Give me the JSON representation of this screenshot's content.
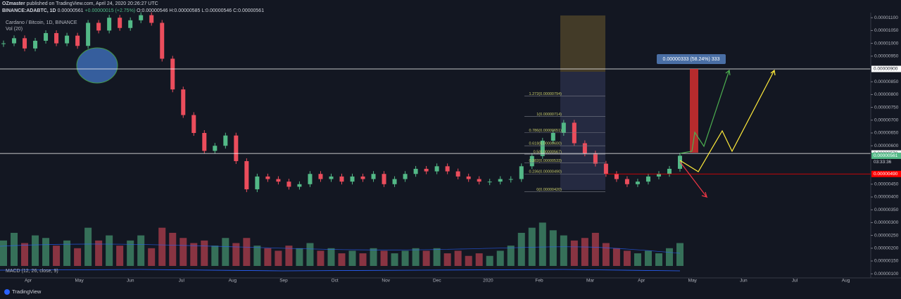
{
  "header": {
    "author": "OZmaster",
    "published": "published on TradingView.com, April 24, 2020 20:26:27 UTC",
    "symbol": "BINANCE:ADABTC, 1D",
    "last": "0.00000561",
    "change": "+0.00000015 (+2.75%)",
    "ohlc": "O:0.00000546 H:0.00000585 L:0.00000546 C:0.00000561"
  },
  "chart_data": {
    "type": "candlestick",
    "title": "Cardano / Bitcoin, 1D, BINANCE",
    "volume_title": "Vol (20)",
    "indicator_title": "MACD (12, 26, close, 9)",
    "closes": [
      1e-05,
      1.02e-05,
      9.8e-06,
      1.01e-05,
      1.04e-05,
      1e-05,
      1.03e-05,
      9.9e-06,
      1.08e-05,
      1.05e-05,
      1.1e-05,
      1.06e-05,
      1.09e-05,
      1.11e-05,
      1.08e-05,
      9.4e-06,
      8.2e-06,
      7.2e-06,
      6.5e-06,
      5.8e-06,
      6e-06,
      6.4e-06,
      5.4e-06,
      4.3e-06,
      4.8e-06,
      4.7e-06,
      4.6e-06,
      4.4e-06,
      4.5e-06,
      4.9e-06,
      4.7e-06,
      4.8e-06,
      4.6e-06,
      4.8e-06,
      4.7e-06,
      4.9e-06,
      4.5e-06,
      4.7e-06,
      4.9e-06,
      5.1e-06,
      5e-06,
      5.2e-06,
      5e-06,
      4.8e-06,
      4.7e-06,
      4.6e-06,
      4.6e-06,
      4.7e-06,
      4.7e-06,
      5.2e-06,
      5.6e-06,
      6.2e-06,
      6.5e-06,
      6.9e-06,
      6.1e-06,
      5.7e-06,
      5.3e-06,
      4.9e-06,
      4.7e-06,
      4.5e-06,
      4.6e-06,
      4.8e-06,
      4.9e-06,
      5.1e-06,
      5.61e-06
    ],
    "volumes": [
      2.3e-06,
      2.6e-06,
      2.2e-06,
      2.5e-06,
      2.4e-06,
      2.1e-06,
      2.3e-06,
      2e-06,
      2.8e-06,
      2.3e-06,
      2.5e-06,
      2.1e-06,
      2.3e-06,
      2.5e-06,
      2e-06,
      2.8e-06,
      2.6e-06,
      2.4e-06,
      2.2e-06,
      2.3e-06,
      2.1e-06,
      2.4e-06,
      2.2e-06,
      2.4e-06,
      2.1e-06,
      2e-06,
      1.9e-06,
      2.1e-06,
      2e-06,
      2.2e-06,
      1.9e-06,
      2e-06,
      1.8e-06,
      1.9e-06,
      1.8e-06,
      2e-06,
      1.9e-06,
      1.8e-06,
      1.9e-06,
      2e-06,
      1.9e-06,
      2e-06,
      1.8e-06,
      1.9e-06,
      1.7e-06,
      1.8e-06,
      1.7e-06,
      1.9e-06,
      2.1e-06,
      2.6e-06,
      2.8e-06,
      3e-06,
      2.7e-06,
      2.5e-06,
      2.3e-06,
      2.4e-06,
      2.6e-06,
      2.2e-06,
      2e-06,
      1.9e-06,
      1.8e-06,
      1.9e-06,
      1.8e-06,
      2e-06,
      2.2e-06
    ],
    "ylim": [
      9e-07,
      1.12e-05
    ],
    "yticks": [
      {
        "value": 1.1e-05,
        "label": "0.00001100"
      },
      {
        "value": 1.05e-05,
        "label": "0.00001050"
      },
      {
        "value": 1e-05,
        "label": "0.00001000"
      },
      {
        "value": 9.5e-06,
        "label": "0.00000950"
      },
      {
        "value": 8.5e-06,
        "label": "0.00000850"
      },
      {
        "value": 8e-06,
        "label": "0.00000800"
      },
      {
        "value": 7.5e-06,
        "label": "0.00000750"
      },
      {
        "value": 7e-06,
        "label": "0.00000700"
      },
      {
        "value": 6.5e-06,
        "label": "0.00000650"
      },
      {
        "value": 6e-06,
        "label": "0.00000600"
      },
      {
        "value": 4.5e-06,
        "label": "0.00000450"
      },
      {
        "value": 4e-06,
        "label": "0.00000400"
      },
      {
        "value": 3.5e-06,
        "label": "0.00000350"
      },
      {
        "value": 3e-06,
        "label": "0.00000300"
      },
      {
        "value": 2.5e-06,
        "label": "0.00000250"
      },
      {
        "value": 2e-06,
        "label": "0.00000200"
      },
      {
        "value": 1.5e-06,
        "label": "0.00000150"
      },
      {
        "value": 1e-06,
        "label": "0.00000100"
      }
    ],
    "levels": [
      {
        "value": 9e-06,
        "label": "0.00000900",
        "color": "#ffffff"
      },
      {
        "value": 5.7e-06,
        "label": "0.00000570",
        "color": "#ffffff"
      },
      {
        "value": 5.61e-06,
        "label": "0.00000561",
        "color": "#53b987"
      },
      {
        "value": 4.9e-06,
        "label": "0.00000490",
        "color": "#ff0000"
      }
    ],
    "countdown": "03:33:36",
    "time_labels": [
      "Apr",
      "May",
      "Jun",
      "Jul",
      "Aug",
      "Sep",
      "Oct",
      "Nov",
      "Dec",
      "2020",
      "Feb",
      "Mar",
      "Apr",
      "May",
      "Jun",
      "Jul",
      "Aug"
    ],
    "fib": [
      {
        "value": 7.94e-06,
        "label": "1.272(0.00000794)"
      },
      {
        "value": 7.14e-06,
        "label": "1(0.00000714)"
      },
      {
        "value": 6.51e-06,
        "label": "0.786(0.00000651)"
      },
      {
        "value": 6e-06,
        "label": "0.618(0.00000600)"
      },
      {
        "value": 5.67e-06,
        "label": "0.5(0.00000567)"
      },
      {
        "value": 5.33e-06,
        "label": "0.382(0.00000533)"
      },
      {
        "value": 4.9e-06,
        "label": "0.236(0.00000490)"
      },
      {
        "value": 4.2e-06,
        "label": "0(0.00000420)"
      }
    ],
    "measure": "0.00000333 (58.24%) 333",
    "brand": "TradingView"
  }
}
